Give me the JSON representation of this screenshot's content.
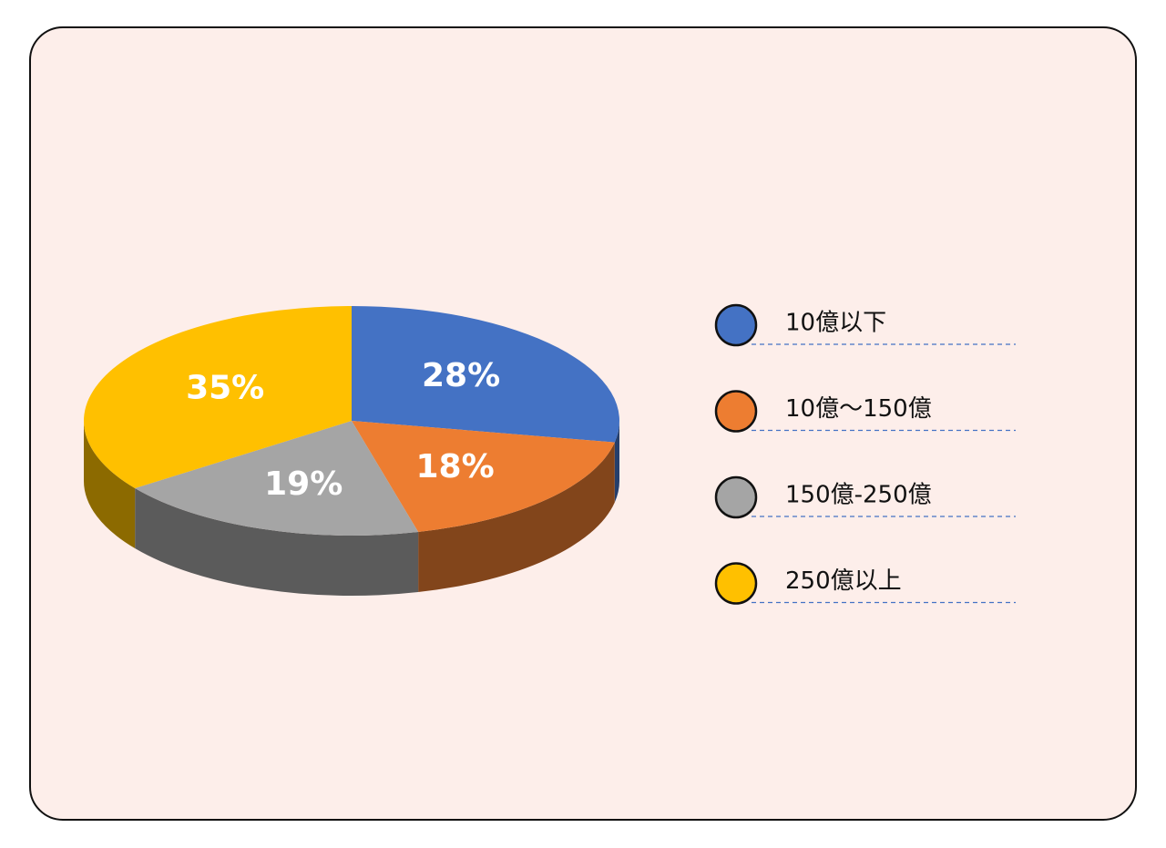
{
  "chart_data": {
    "type": "pie",
    "categories": [
      "10億以下",
      "10億〜150億",
      "150億-250億",
      "250億以上"
    ],
    "values": [
      28,
      18,
      19,
      35
    ],
    "value_labels": [
      "28%",
      "18%",
      "19%",
      "35%"
    ],
    "colors": [
      "#4472c4",
      "#ed7d31",
      "#a5a5a5",
      "#ffc000"
    ],
    "legend": "right"
  }
}
